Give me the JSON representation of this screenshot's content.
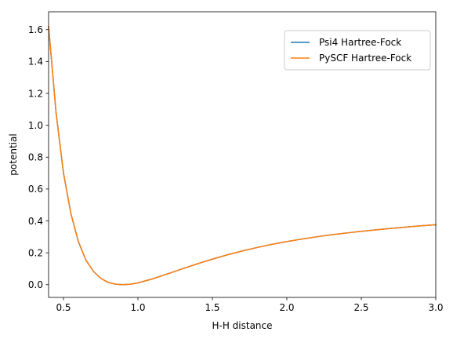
{
  "chart_data": {
    "type": "line",
    "title": "",
    "xlabel": "H-H distance",
    "ylabel": "potential",
    "xlim": [
      0.4,
      3.0
    ],
    "ylim": [
      -0.08,
      1.712
    ],
    "xticks": [
      0.5,
      1.0,
      1.5,
      2.0,
      2.5,
      3.0
    ],
    "xtick_labels": [
      "0.5",
      "1.0",
      "1.5",
      "2.0",
      "2.5",
      "3.0"
    ],
    "yticks": [
      0.0,
      0.2,
      0.4,
      0.6,
      0.8,
      1.0,
      1.2,
      1.4,
      1.6
    ],
    "ytick_labels": [
      "0.0",
      "0.2",
      "0.4",
      "0.6",
      "0.8",
      "1.0",
      "1.2",
      "1.4",
      "1.6"
    ],
    "grid": false,
    "legend_position": "top-right",
    "x": [
      0.4,
      0.45,
      0.5,
      0.55,
      0.6,
      0.65,
      0.7,
      0.75,
      0.8,
      0.85,
      0.9,
      0.95,
      1.0,
      1.1,
      1.2,
      1.3,
      1.4,
      1.5,
      1.6,
      1.7,
      1.8,
      1.9,
      2.0,
      2.1,
      2.2,
      2.3,
      2.4,
      2.5,
      2.6,
      2.7,
      2.8,
      2.9,
      3.0
    ],
    "series": [
      {
        "name": "Psi4 Hartree-Fock",
        "color": "#1f77b4",
        "values": [
          1.62,
          1.08,
          0.7,
          0.445,
          0.27,
          0.155,
          0.085,
          0.04,
          0.014,
          0.003,
          0.0,
          0.003,
          0.011,
          0.037,
          0.068,
          0.1,
          0.131,
          0.16,
          0.187,
          0.211,
          0.233,
          0.253,
          0.27,
          0.286,
          0.3,
          0.313,
          0.324,
          0.335,
          0.344,
          0.353,
          0.361,
          0.369,
          0.376
        ]
      },
      {
        "name": "PySCF Hartree-Fock",
        "color": "#ff7f0e",
        "values": [
          1.62,
          1.08,
          0.7,
          0.445,
          0.27,
          0.155,
          0.085,
          0.04,
          0.014,
          0.003,
          0.0,
          0.003,
          0.011,
          0.037,
          0.068,
          0.1,
          0.131,
          0.16,
          0.187,
          0.211,
          0.233,
          0.253,
          0.27,
          0.286,
          0.3,
          0.313,
          0.324,
          0.335,
          0.344,
          0.353,
          0.361,
          0.369,
          0.376
        ]
      }
    ]
  }
}
